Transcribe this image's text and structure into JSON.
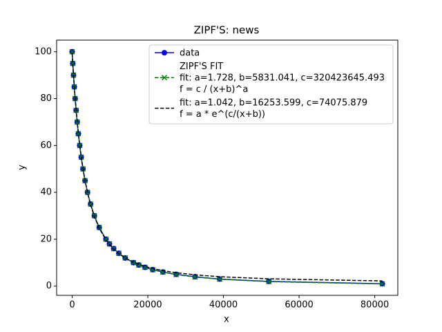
{
  "chart_data": {
    "type": "line",
    "title": "ZIPF'S: news",
    "xlabel": "x",
    "ylabel": "y",
    "x": [
      0,
      166,
      364,
      567,
      796,
      1052,
      1333,
      1640,
      2000,
      2400,
      2860,
      3406,
      4064,
      4869,
      5869,
      7159,
      8939,
      9869,
      10979,
      12339,
      14029,
      16219,
      17629,
      19279,
      21309,
      24000,
      27500,
      32500,
      39000,
      52000,
      82000
    ],
    "series": [
      {
        "name": "data",
        "color": "#0000ff",
        "marker": "o",
        "dash": false,
        "values": [
          100,
          95,
          90,
          85,
          80,
          75,
          70,
          65,
          60,
          55,
          50,
          45,
          40,
          35,
          30,
          25,
          20,
          18,
          16,
          14,
          12,
          10,
          9,
          8,
          7,
          6,
          5,
          4,
          3,
          2,
          1
        ]
      },
      {
        "name": "ZIPF'S FIT\nfit: a=1.728, b=5831.041, c=320423645.493\nf = c / (x+b)^a",
        "color": "#008000",
        "marker": "x",
        "dash": true,
        "values": [
          100,
          95,
          90,
          85,
          80,
          75,
          70,
          65,
          60,
          55,
          50,
          45,
          40,
          35,
          30,
          25,
          20,
          18,
          16,
          14,
          12,
          10,
          9,
          8,
          7,
          5.94,
          4.9,
          3.85,
          2.94,
          1.89,
          0.92
        ]
      },
      {
        "name": "fit: a=1.042, b=16253.599, c=74075.879\nf = a * e^(c/(x+b))",
        "color": "#000000",
        "marker": null,
        "dash": true,
        "values": [
          99.4,
          94.8,
          89.9,
          85.2,
          80.3,
          75.3,
          70.3,
          65.4,
          60.3,
          55.3,
          50.2,
          45.1,
          39.9,
          34.7,
          29.7,
          24.7,
          19.7,
          17.8,
          15.8,
          13.9,
          12.0,
          10.2,
          9.3,
          8.4,
          7.5,
          6.6,
          5.7,
          4.8,
          4.0,
          3.1,
          2.2
        ]
      }
    ],
    "xlim": [
      -4100,
      86100
    ],
    "ylim": [
      -3.95,
      104.95
    ],
    "xticks": [
      0,
      20000,
      40000,
      60000,
      80000
    ],
    "yticks": [
      0,
      20,
      40,
      60,
      80,
      100
    ],
    "grid": false,
    "legend": "upper right"
  }
}
